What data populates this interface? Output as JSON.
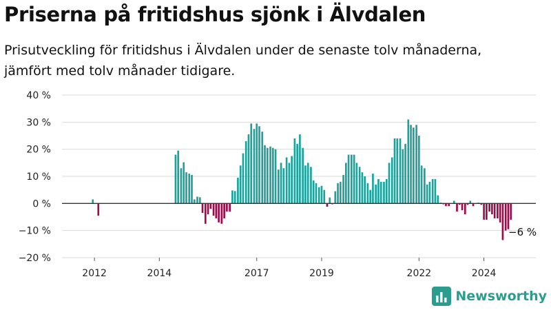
{
  "header": {
    "title": "Priserna på fritidshus sjönk i Älvdalen",
    "subtitle_line1": "Prisutveckling för fritidshus i Älvdalen under de senaste tolv månaderna,",
    "subtitle_line2": "jämfört med tolv månader tidigare."
  },
  "colors": {
    "positive": "#1aa39c",
    "negative": "#9b0d4a",
    "grid": "#d9d9d9",
    "baseline": "#333333",
    "brand": "#2a9d8f"
  },
  "brand": {
    "name": "Newsworthy",
    "icon": "bar-chart-logo-icon"
  },
  "chart_data": {
    "type": "bar",
    "ylabel": "",
    "xlabel": "",
    "ylim": [
      -20,
      40
    ],
    "yticks": [
      -20,
      -10,
      0,
      10,
      20,
      30,
      40
    ],
    "ytick_labels": [
      "−20 %",
      "−10 %",
      "0 %",
      "10 %",
      "20 %",
      "30 %",
      "40 %"
    ],
    "xlim": [
      2011.0,
      2025.6
    ],
    "xticks": [
      2012,
      2014,
      2017,
      2019,
      2022,
      2024
    ],
    "xtick_labels": [
      "2012",
      "2014",
      "2017",
      "2019",
      "2022",
      "2024"
    ],
    "grid": true,
    "annotation": {
      "text": "−6 %",
      "x": 2024.9,
      "y": -6
    },
    "bars": [
      {
        "x": 2011.95,
        "y": 1.5
      },
      {
        "x": 2012.12,
        "y": -4.5
      },
      {
        "x": 2014.5,
        "y": 18
      },
      {
        "x": 2014.58,
        "y": 19.5
      },
      {
        "x": 2014.67,
        "y": 13
      },
      {
        "x": 2014.75,
        "y": 15.2
      },
      {
        "x": 2014.83,
        "y": 11.5
      },
      {
        "x": 2014.92,
        "y": 11
      },
      {
        "x": 2015.0,
        "y": 10.5
      },
      {
        "x": 2015.08,
        "y": 1.5
      },
      {
        "x": 2015.17,
        "y": 2.5
      },
      {
        "x": 2015.25,
        "y": 2.3
      },
      {
        "x": 2015.33,
        "y": -3.5
      },
      {
        "x": 2015.42,
        "y": -7.5
      },
      {
        "x": 2015.5,
        "y": -4
      },
      {
        "x": 2015.58,
        "y": -2
      },
      {
        "x": 2015.67,
        "y": -4.5
      },
      {
        "x": 2015.75,
        "y": -5.5
      },
      {
        "x": 2015.83,
        "y": -7
      },
      {
        "x": 2015.92,
        "y": -7.5
      },
      {
        "x": 2016.0,
        "y": -5.5
      },
      {
        "x": 2016.08,
        "y": -3
      },
      {
        "x": 2016.17,
        "y": -3
      },
      {
        "x": 2016.25,
        "y": 4.8
      },
      {
        "x": 2016.33,
        "y": 4.6
      },
      {
        "x": 2016.42,
        "y": 9.5
      },
      {
        "x": 2016.5,
        "y": 14
      },
      {
        "x": 2016.58,
        "y": 18.5
      },
      {
        "x": 2016.67,
        "y": 23
      },
      {
        "x": 2016.75,
        "y": 25.5
      },
      {
        "x": 2016.83,
        "y": 29.5
      },
      {
        "x": 2016.92,
        "y": 27.5
      },
      {
        "x": 2017.0,
        "y": 29.5
      },
      {
        "x": 2017.08,
        "y": 28.5
      },
      {
        "x": 2017.17,
        "y": 26.5
      },
      {
        "x": 2017.25,
        "y": 21.5
      },
      {
        "x": 2017.33,
        "y": 20.5
      },
      {
        "x": 2017.42,
        "y": 21
      },
      {
        "x": 2017.5,
        "y": 20.5
      },
      {
        "x": 2017.58,
        "y": 20
      },
      {
        "x": 2017.67,
        "y": 12.5
      },
      {
        "x": 2017.75,
        "y": 15
      },
      {
        "x": 2017.83,
        "y": 13
      },
      {
        "x": 2017.92,
        "y": 17
      },
      {
        "x": 2018.0,
        "y": 15
      },
      {
        "x": 2018.08,
        "y": 17.5
      },
      {
        "x": 2018.17,
        "y": 24
      },
      {
        "x": 2018.25,
        "y": 22
      },
      {
        "x": 2018.33,
        "y": 25.5
      },
      {
        "x": 2018.42,
        "y": 20.5
      },
      {
        "x": 2018.5,
        "y": 14
      },
      {
        "x": 2018.58,
        "y": 15
      },
      {
        "x": 2018.67,
        "y": 13.5
      },
      {
        "x": 2018.75,
        "y": 8.5
      },
      {
        "x": 2018.83,
        "y": 7.5
      },
      {
        "x": 2018.92,
        "y": 6
      },
      {
        "x": 2019.0,
        "y": 6.5
      },
      {
        "x": 2019.08,
        "y": 5
      },
      {
        "x": 2019.17,
        "y": -1.2
      },
      {
        "x": 2019.25,
        "y": 2.2
      },
      {
        "x": 2019.33,
        "y": -0.3
      },
      {
        "x": 2019.42,
        "y": 4.5
      },
      {
        "x": 2019.5,
        "y": 7.5
      },
      {
        "x": 2019.58,
        "y": 8
      },
      {
        "x": 2019.67,
        "y": 10.5
      },
      {
        "x": 2019.75,
        "y": 15
      },
      {
        "x": 2019.83,
        "y": 18
      },
      {
        "x": 2019.92,
        "y": 18
      },
      {
        "x": 2020.0,
        "y": 18
      },
      {
        "x": 2020.08,
        "y": 15
      },
      {
        "x": 2020.17,
        "y": 13.5
      },
      {
        "x": 2020.25,
        "y": 11.5
      },
      {
        "x": 2020.33,
        "y": 10
      },
      {
        "x": 2020.42,
        "y": 7.5
      },
      {
        "x": 2020.5,
        "y": 5
      },
      {
        "x": 2020.58,
        "y": 11
      },
      {
        "x": 2020.67,
        "y": 7
      },
      {
        "x": 2020.75,
        "y": 9
      },
      {
        "x": 2020.83,
        "y": 8
      },
      {
        "x": 2020.92,
        "y": 8
      },
      {
        "x": 2021.0,
        "y": 9
      },
      {
        "x": 2021.08,
        "y": 15
      },
      {
        "x": 2021.17,
        "y": 17
      },
      {
        "x": 2021.25,
        "y": 24
      },
      {
        "x": 2021.33,
        "y": 24
      },
      {
        "x": 2021.42,
        "y": 24
      },
      {
        "x": 2021.5,
        "y": 20
      },
      {
        "x": 2021.58,
        "y": 22
      },
      {
        "x": 2021.67,
        "y": 31
      },
      {
        "x": 2021.75,
        "y": 29
      },
      {
        "x": 2021.83,
        "y": 28
      },
      {
        "x": 2021.92,
        "y": 29
      },
      {
        "x": 2022.0,
        "y": 25
      },
      {
        "x": 2022.08,
        "y": 14
      },
      {
        "x": 2022.17,
        "y": 13
      },
      {
        "x": 2022.25,
        "y": 7
      },
      {
        "x": 2022.33,
        "y": 8
      },
      {
        "x": 2022.42,
        "y": 9
      },
      {
        "x": 2022.5,
        "y": 9
      },
      {
        "x": 2022.58,
        "y": 3
      },
      {
        "x": 2022.67,
        "y": 0.3
      },
      {
        "x": 2022.75,
        "y": -0.3
      },
      {
        "x": 2022.83,
        "y": -1
      },
      {
        "x": 2022.92,
        "y": -1
      },
      {
        "x": 2023.0,
        "y": 0
      },
      {
        "x": 2023.08,
        "y": 1
      },
      {
        "x": 2023.17,
        "y": -3
      },
      {
        "x": 2023.25,
        "y": -0.5
      },
      {
        "x": 2023.33,
        "y": -2.5
      },
      {
        "x": 2023.42,
        "y": -4
      },
      {
        "x": 2023.5,
        "y": -0.5
      },
      {
        "x": 2023.58,
        "y": 1
      },
      {
        "x": 2023.67,
        "y": -1
      },
      {
        "x": 2023.75,
        "y": 0
      },
      {
        "x": 2023.83,
        "y": 0.3
      },
      {
        "x": 2023.92,
        "y": -0.5
      },
      {
        "x": 2024.0,
        "y": -6
      },
      {
        "x": 2024.08,
        "y": -6
      },
      {
        "x": 2024.17,
        "y": -3
      },
      {
        "x": 2024.25,
        "y": -4
      },
      {
        "x": 2024.33,
        "y": -5.5
      },
      {
        "x": 2024.42,
        "y": -5.5
      },
      {
        "x": 2024.5,
        "y": -7
      },
      {
        "x": 2024.58,
        "y": -13.5
      },
      {
        "x": 2024.67,
        "y": -10
      },
      {
        "x": 2024.75,
        "y": -9.5
      },
      {
        "x": 2024.83,
        "y": -6
      }
    ]
  }
}
